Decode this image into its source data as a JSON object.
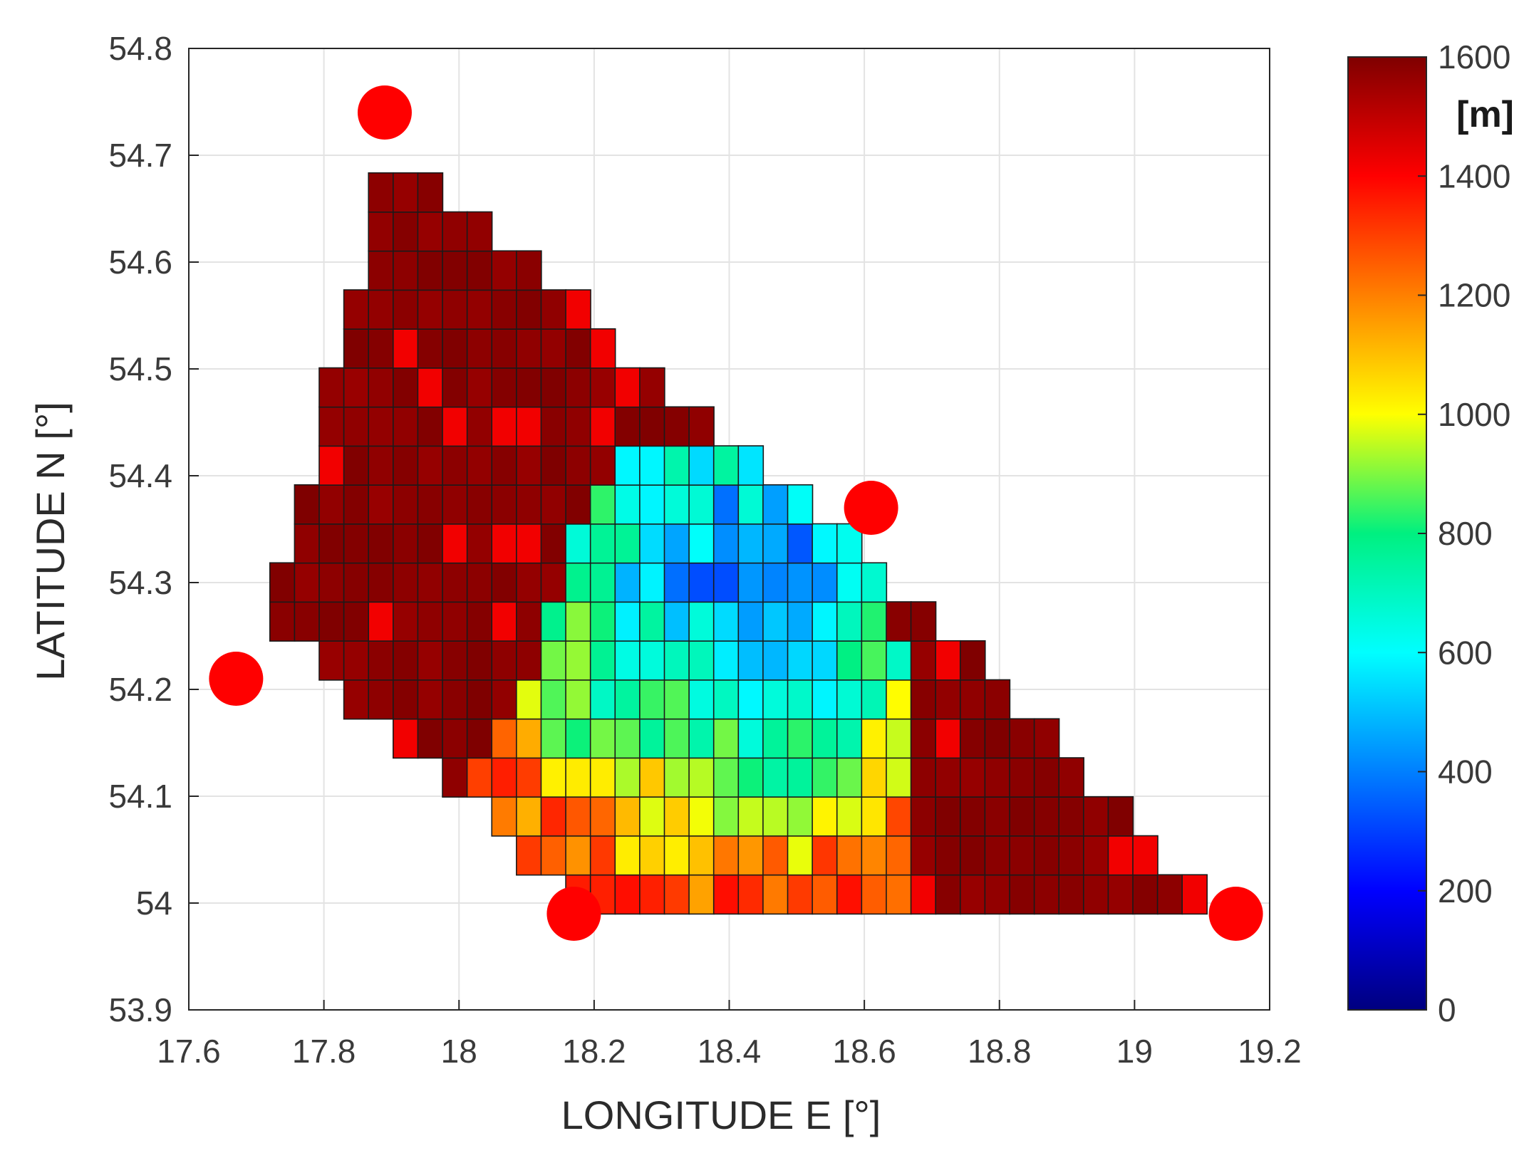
{
  "chart_data": {
    "type": "heatmap",
    "xlabel": "LONGITUDE E [°]",
    "ylabel": "LATITUDE N [°]",
    "xlim": [
      17.6,
      19.2
    ],
    "ylim": [
      53.9,
      54.8
    ],
    "xticks": [
      "17.6",
      "17.8",
      "18",
      "18.2",
      "18.4",
      "18.6",
      "18.8",
      "19",
      "19.2"
    ],
    "yticks": [
      "53.9",
      "54",
      "54.1",
      "54.2",
      "54.3",
      "54.4",
      "54.5",
      "54.6",
      "54.7",
      "54.8"
    ],
    "grid": true,
    "colormap": "jet",
    "colorbar": {
      "label": "[m]",
      "range": [
        0,
        1600
      ],
      "ticks": [
        "0",
        "200",
        "400",
        "600",
        "800",
        "1000",
        "1200",
        "1400",
        "1600"
      ]
    },
    "cell_size_deg": 0.0365,
    "cell_grid_origin": {
      "lon": 17.72,
      "lat": 53.99
    },
    "region": {
      "type": "polygon",
      "vertices": [
        [
          17.72,
          54.26
        ],
        [
          17.9,
          54.71
        ],
        [
          18.7,
          54.27
        ],
        [
          19.12,
          53.99
        ],
        [
          18.2,
          53.99
        ]
      ]
    },
    "low_value_zone": {
      "type": "polygon",
      "vertices": [
        [
          18.2,
          53.99
        ],
        [
          18.68,
          53.99
        ],
        [
          18.67,
          54.22
        ],
        [
          18.6,
          54.34
        ],
        [
          18.5,
          54.41
        ],
        [
          18.42,
          54.44
        ],
        [
          18.28,
          54.43
        ],
        [
          18.2,
          54.39
        ],
        [
          18.15,
          54.31
        ],
        [
          18.1,
          54.22
        ],
        [
          18.02,
          54.12
        ],
        [
          18.03,
          54.08
        ],
        [
          18.1,
          54.04
        ]
      ]
    },
    "low_value_center": {
      "lon": 18.42,
      "lat": 54.31
    },
    "values_description": [
      {
        "lon": 18.42,
        "lat": 54.31,
        "value": 350
      },
      {
        "lon": 18.4,
        "lat": 54.2,
        "value": 600
      },
      {
        "lon": 18.3,
        "lat": 54.1,
        "value": 800
      },
      {
        "lon": 18.6,
        "lat": 54.1,
        "value": 1000
      },
      {
        "lon": 17.95,
        "lat": 54.45,
        "value": 1600
      },
      {
        "lon": 18.9,
        "lat": 54.05,
        "value": 1600
      }
    ],
    "markers": [
      {
        "lon": 17.89,
        "lat": 54.74,
        "color": "#ff0000"
      },
      {
        "lon": 17.67,
        "lat": 54.21,
        "color": "#ff0000"
      },
      {
        "lon": 18.17,
        "lat": 53.99,
        "color": "#ff0000"
      },
      {
        "lon": 18.61,
        "lat": 54.37,
        "color": "#ff0000"
      },
      {
        "lon": 19.15,
        "lat": 53.99,
        "color": "#ff0000"
      }
    ]
  }
}
